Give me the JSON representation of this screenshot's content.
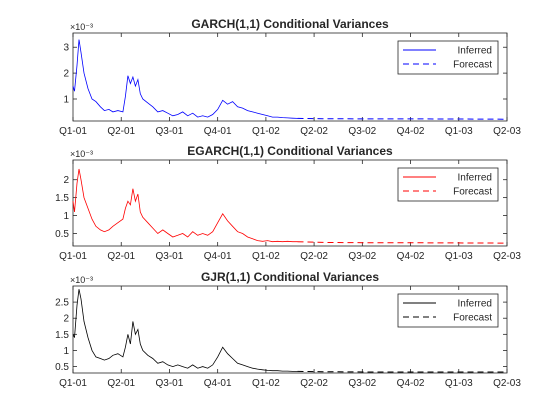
{
  "chart_data": [
    {
      "type": "line",
      "title": "GARCH(1,1) Conditional Variances",
      "exponent_label": "×10⁻³",
      "color": "#0000ff",
      "ylim": [
        0.15,
        3.55
      ],
      "yticks": [
        "1",
        "2",
        "3"
      ],
      "ytick_values": [
        1,
        2,
        3
      ],
      "legend": {
        "position": "top-right",
        "entries": [
          "Inferred",
          "Forecast"
        ]
      },
      "inferred": [
        [
          0,
          1.5
        ],
        [
          0.3,
          1.3
        ],
        [
          0.8,
          2.3
        ],
        [
          1.2,
          3.3
        ],
        [
          1.6,
          2.8
        ],
        [
          2.2,
          2.0
        ],
        [
          3,
          1.4
        ],
        [
          3.8,
          1.0
        ],
        [
          4.6,
          0.9
        ],
        [
          5.5,
          0.7
        ],
        [
          6.3,
          0.55
        ],
        [
          7.2,
          0.6
        ],
        [
          8,
          0.5
        ],
        [
          9,
          0.55
        ],
        [
          10,
          0.5
        ],
        [
          10.5,
          1.1
        ],
        [
          11,
          1.9
        ],
        [
          11.5,
          1.6
        ],
        [
          12,
          1.85
        ],
        [
          12.5,
          1.5
        ],
        [
          13,
          1.75
        ],
        [
          13.5,
          1.2
        ],
        [
          14,
          1.0
        ],
        [
          15,
          0.85
        ],
        [
          16,
          0.7
        ],
        [
          17,
          0.5
        ],
        [
          18,
          0.55
        ],
        [
          19,
          0.45
        ],
        [
          20,
          0.35
        ],
        [
          21,
          0.4
        ],
        [
          22,
          0.5
        ],
        [
          23,
          0.35
        ],
        [
          24,
          0.45
        ],
        [
          25,
          0.3
        ],
        [
          26,
          0.35
        ],
        [
          27,
          0.3
        ],
        [
          28,
          0.4
        ],
        [
          29,
          0.6
        ],
        [
          30,
          0.95
        ],
        [
          31,
          0.8
        ],
        [
          32,
          0.9
        ],
        [
          33,
          0.7
        ],
        [
          34,
          0.65
        ],
        [
          35,
          0.55
        ],
        [
          36,
          0.5
        ],
        [
          37,
          0.45
        ],
        [
          38,
          0.4
        ],
        [
          39,
          0.35
        ],
        [
          40,
          0.3
        ],
        [
          41,
          0.3
        ],
        [
          42,
          0.28
        ],
        [
          43,
          0.27
        ],
        [
          44,
          0.26
        ],
        [
          45,
          0.25
        ]
      ],
      "forecast": [
        [
          45,
          0.25
        ],
        [
          50,
          0.24
        ],
        [
          60,
          0.23
        ],
        [
          70,
          0.23
        ],
        [
          87,
          0.22
        ]
      ]
    },
    {
      "type": "line",
      "title": "EGARCH(1,1) Conditional Variances",
      "exponent_label": "×10⁻³",
      "color": "#ff0000",
      "ylim": [
        0.15,
        2.55
      ],
      "yticks": [
        "0.5",
        "1",
        "1.5",
        "2"
      ],
      "ytick_values": [
        0.5,
        1,
        1.5,
        2
      ],
      "legend": {
        "position": "top-right",
        "entries": [
          "Inferred",
          "Forecast"
        ]
      },
      "inferred": [
        [
          0,
          1.4
        ],
        [
          0.3,
          1.1
        ],
        [
          0.8,
          1.9
        ],
        [
          1.2,
          2.3
        ],
        [
          1.6,
          2.0
        ],
        [
          2.2,
          1.5
        ],
        [
          3,
          1.2
        ],
        [
          3.8,
          0.9
        ],
        [
          4.6,
          0.7
        ],
        [
          5.5,
          0.6
        ],
        [
          6.3,
          0.55
        ],
        [
          7.2,
          0.6
        ],
        [
          8,
          0.7
        ],
        [
          9,
          0.8
        ],
        [
          10,
          0.9
        ],
        [
          10.5,
          1.2
        ],
        [
          11,
          1.4
        ],
        [
          11.5,
          1.3
        ],
        [
          12,
          1.75
        ],
        [
          12.5,
          1.4
        ],
        [
          13,
          1.6
        ],
        [
          13.5,
          1.1
        ],
        [
          14,
          0.95
        ],
        [
          15,
          0.8
        ],
        [
          16,
          0.65
        ],
        [
          17,
          0.5
        ],
        [
          18,
          0.6
        ],
        [
          19,
          0.5
        ],
        [
          20,
          0.4
        ],
        [
          21,
          0.45
        ],
        [
          22,
          0.5
        ],
        [
          23,
          0.4
        ],
        [
          24,
          0.55
        ],
        [
          25,
          0.45
        ],
        [
          26,
          0.5
        ],
        [
          27,
          0.45
        ],
        [
          28,
          0.55
        ],
        [
          29,
          0.8
        ],
        [
          30,
          1.05
        ],
        [
          31,
          0.85
        ],
        [
          32,
          0.7
        ],
        [
          33,
          0.55
        ],
        [
          34,
          0.5
        ],
        [
          35,
          0.4
        ],
        [
          36,
          0.35
        ],
        [
          37,
          0.3
        ],
        [
          38,
          0.28
        ],
        [
          39,
          0.3
        ],
        [
          40,
          0.27
        ],
        [
          41,
          0.28
        ],
        [
          42,
          0.27
        ],
        [
          43,
          0.28
        ],
        [
          44,
          0.27
        ],
        [
          45,
          0.27
        ]
      ],
      "forecast": [
        [
          45,
          0.27
        ],
        [
          50,
          0.25
        ],
        [
          60,
          0.24
        ],
        [
          70,
          0.24
        ],
        [
          87,
          0.23
        ]
      ]
    },
    {
      "type": "line",
      "title": "GJR(1,1) Conditional Variances",
      "exponent_label": "×10⁻³",
      "color": "#000000",
      "ylim": [
        0.3,
        3.0
      ],
      "yticks": [
        "0.5",
        "1",
        "1.5",
        "2",
        "2.5"
      ],
      "ytick_values": [
        0.5,
        1,
        1.5,
        2,
        2.5
      ],
      "legend": {
        "position": "top-right",
        "entries": [
          "Inferred",
          "Forecast"
        ]
      },
      "inferred": [
        [
          0,
          1.5
        ],
        [
          0.3,
          1.4
        ],
        [
          0.8,
          2.4
        ],
        [
          1.2,
          2.9
        ],
        [
          1.6,
          2.6
        ],
        [
          2.2,
          1.9
        ],
        [
          3,
          1.4
        ],
        [
          3.8,
          1.0
        ],
        [
          4.6,
          0.8
        ],
        [
          5.5,
          0.75
        ],
        [
          6.3,
          0.7
        ],
        [
          7.2,
          0.75
        ],
        [
          8,
          0.85
        ],
        [
          9,
          0.9
        ],
        [
          10,
          0.8
        ],
        [
          10.5,
          1.1
        ],
        [
          11,
          1.5
        ],
        [
          11.5,
          1.2
        ],
        [
          12,
          1.9
        ],
        [
          12.5,
          1.5
        ],
        [
          13,
          1.65
        ],
        [
          13.5,
          1.2
        ],
        [
          14,
          1.0
        ],
        [
          15,
          0.85
        ],
        [
          16,
          0.75
        ],
        [
          17,
          0.6
        ],
        [
          18,
          0.65
        ],
        [
          19,
          0.55
        ],
        [
          20,
          0.5
        ],
        [
          21,
          0.55
        ],
        [
          22,
          0.5
        ],
        [
          23,
          0.45
        ],
        [
          24,
          0.55
        ],
        [
          25,
          0.45
        ],
        [
          26,
          0.5
        ],
        [
          27,
          0.45
        ],
        [
          28,
          0.55
        ],
        [
          29,
          0.8
        ],
        [
          30,
          1.1
        ],
        [
          31,
          0.9
        ],
        [
          32,
          0.75
        ],
        [
          33,
          0.6
        ],
        [
          34,
          0.55
        ],
        [
          35,
          0.5
        ],
        [
          36,
          0.45
        ],
        [
          37,
          0.42
        ],
        [
          38,
          0.4
        ],
        [
          39,
          0.38
        ],
        [
          40,
          0.37
        ],
        [
          41,
          0.37
        ],
        [
          42,
          0.36
        ],
        [
          43,
          0.36
        ],
        [
          44,
          0.35
        ],
        [
          45,
          0.35
        ]
      ],
      "forecast": [
        [
          45,
          0.35
        ],
        [
          50,
          0.34
        ],
        [
          60,
          0.33
        ],
        [
          70,
          0.33
        ],
        [
          87,
          0.33
        ]
      ]
    }
  ],
  "xaxis": {
    "xlim": [
      0,
      87
    ],
    "tick_values": [
      0,
      10,
      20,
      30,
      40,
      50,
      60,
      70,
      80
    ],
    "ticks": [
      "Q1-01",
      "Q2-01",
      "Q3-01",
      "Q4-01",
      "Q1-02",
      "Q2-02",
      "Q3-02",
      "Q4-02",
      "Q1-03",
      "Q2-03"
    ],
    "tick_positions": [
      0,
      9.67,
      19.33,
      29,
      38.67,
      48.33,
      58,
      67.67,
      77.33,
      87
    ]
  }
}
